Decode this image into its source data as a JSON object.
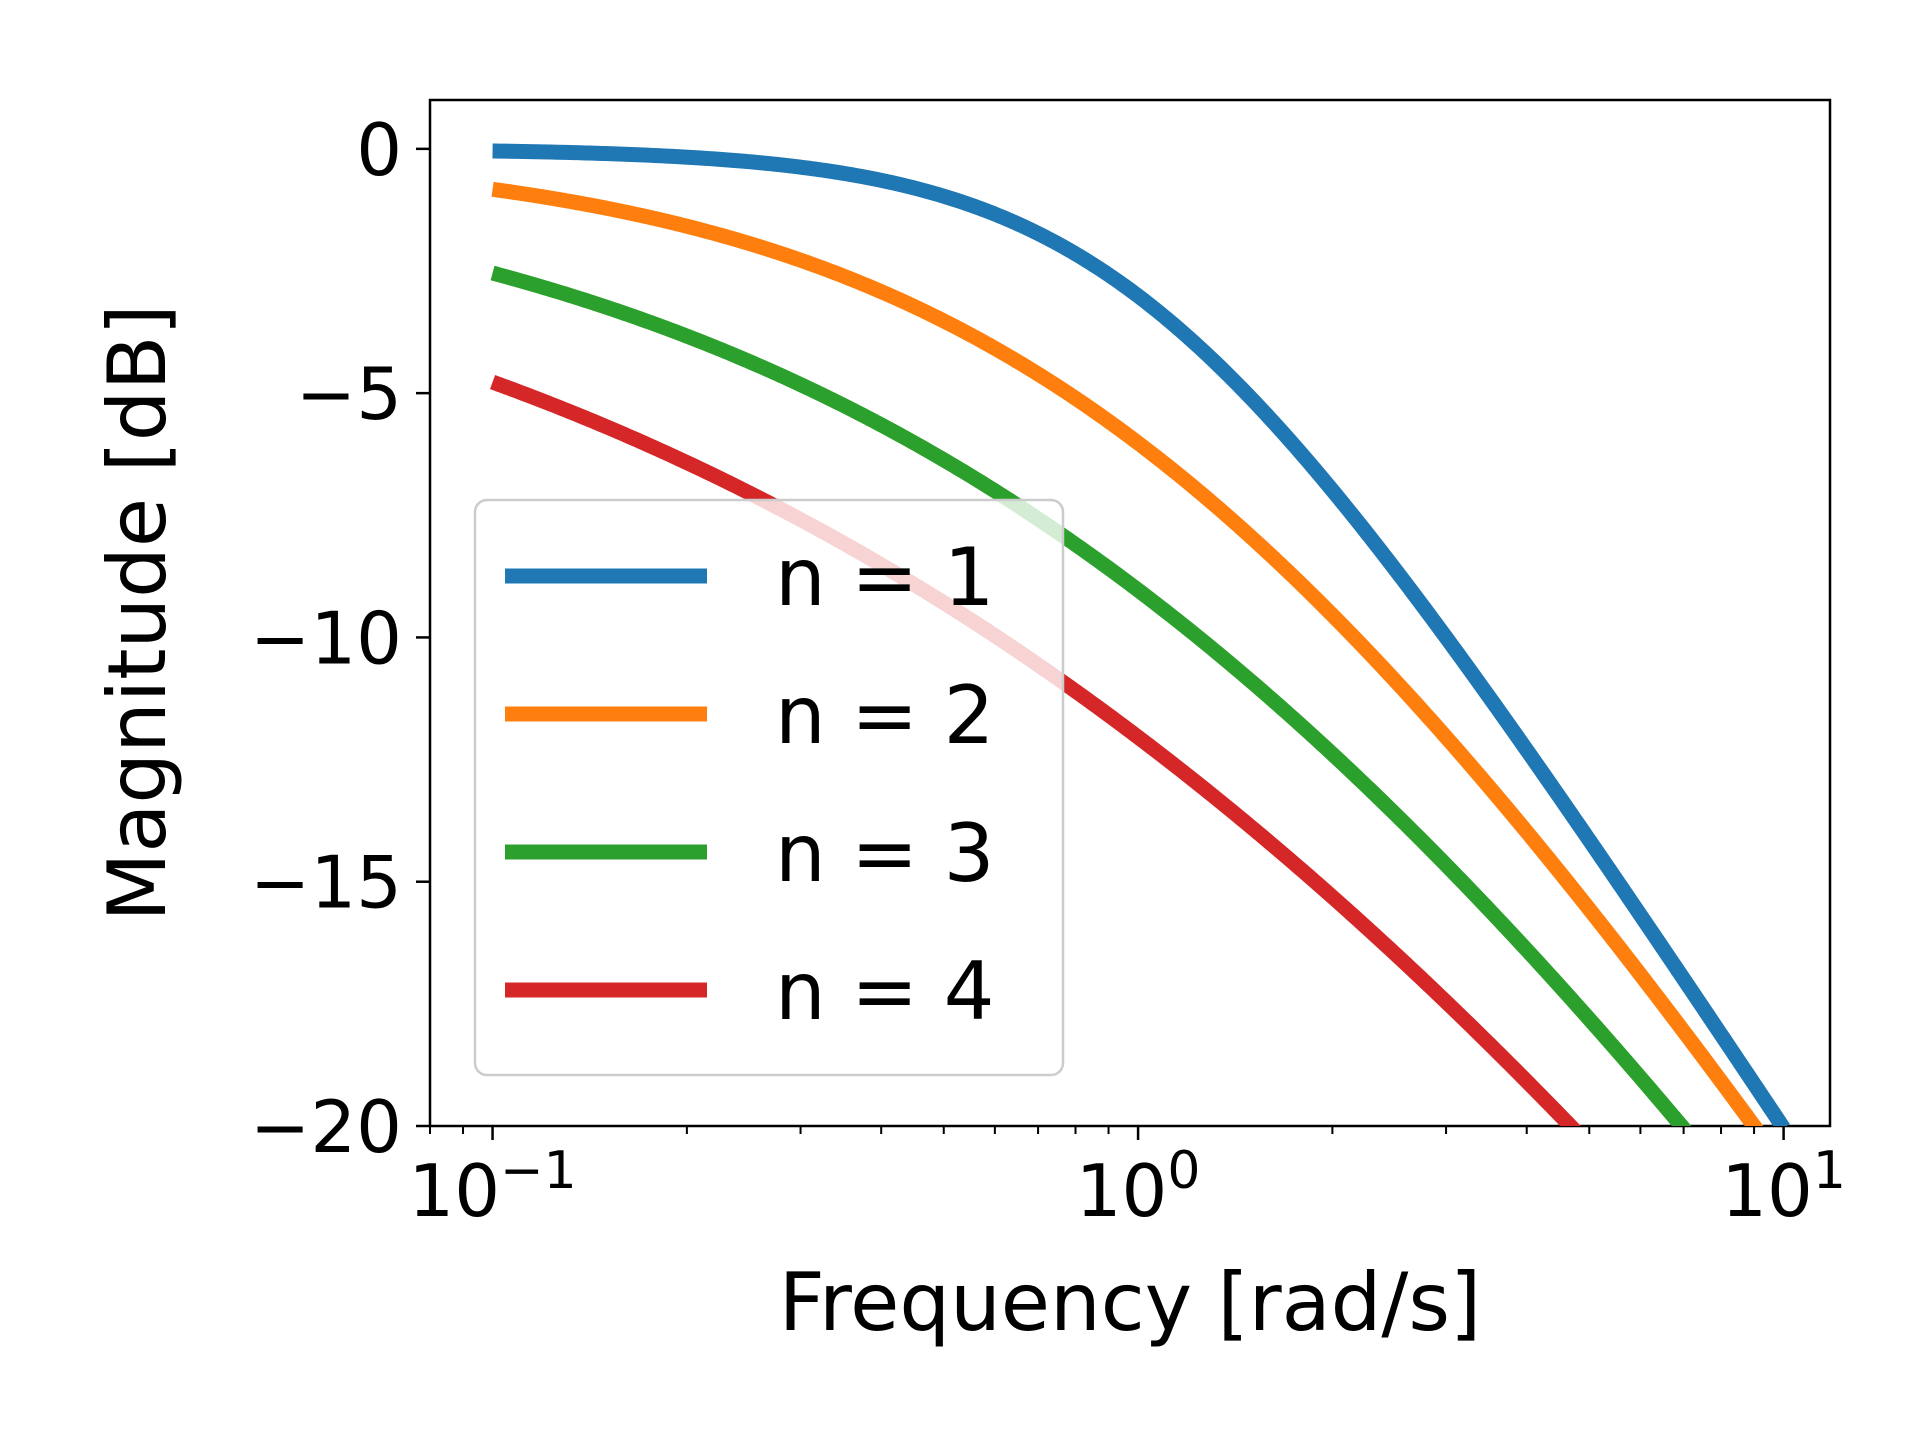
{
  "chart_data": {
    "type": "line",
    "title": "",
    "xlabel": "Frequency [rad/s]",
    "ylabel": "Magnitude [dB]",
    "x_scale": "log",
    "xlim": [
      0.08,
      11.8
    ],
    "ylim": [
      -20,
      1
    ],
    "x_ticks": [
      {
        "value": 0.1,
        "base": "10",
        "exp": "−1"
      },
      {
        "value": 1,
        "base": "10",
        "exp": "0"
      },
      {
        "value": 10,
        "base": "10",
        "exp": "1"
      }
    ],
    "y_ticks": [
      {
        "value": 0,
        "label": "0"
      },
      {
        "value": -5,
        "label": "−5"
      },
      {
        "value": -10,
        "label": "−10"
      },
      {
        "value": -15,
        "label": "−15"
      },
      {
        "value": -20,
        "label": "−20"
      }
    ],
    "grid": false,
    "legend_position": "center-left",
    "x_range": [
      0.1,
      10
    ],
    "series": [
      {
        "name": "n = 1",
        "order": 1,
        "color": "#1f77b4"
      },
      {
        "name": "n = 2",
        "order": 2,
        "color": "#ff7f0e"
      },
      {
        "name": "n = 3",
        "order": 3,
        "color": "#2ca02c"
      },
      {
        "name": "n = 4",
        "order": 4,
        "color": "#d62728"
      }
    ]
  }
}
